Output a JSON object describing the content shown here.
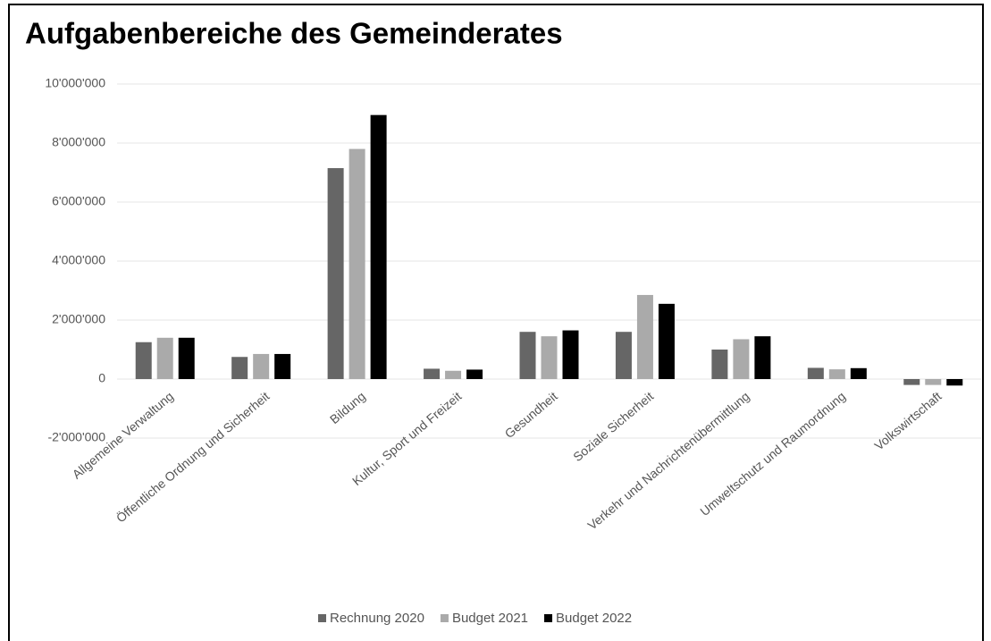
{
  "chart_data": {
    "type": "bar",
    "title": "Aufgabenbereiche des Gemeinderates",
    "categories": [
      "Allgemeine Verwaltung",
      "Öffentliche Ordnung und Sicherheit",
      "Bildung",
      "Kultur, Sport und Freizeit",
      "Gesundheit",
      "Soziale Sicherheit",
      "Verkehr und Nachrichtenübermittlung",
      "Umweltschutz und Raumordnung",
      "Volkswirtschaft"
    ],
    "series": [
      {
        "name": "Rechnung 2020",
        "color": "#666666",
        "values": [
          1250000,
          750000,
          7150000,
          350000,
          1600000,
          1600000,
          1000000,
          380000,
          -200000
        ]
      },
      {
        "name": "Budget 2021",
        "color": "#aaaaaa",
        "values": [
          1400000,
          850000,
          7800000,
          280000,
          1450000,
          2850000,
          1350000,
          330000,
          -200000
        ]
      },
      {
        "name": "Budget 2022",
        "color": "#000000",
        "values": [
          1400000,
          850000,
          8950000,
          320000,
          1650000,
          2550000,
          1450000,
          370000,
          -220000
        ]
      }
    ],
    "ylim": [
      -2000000,
      10000000
    ],
    "yticks": [
      {
        "value": -2000000,
        "label": "-2'000'000"
      },
      0,
      {
        "value": 2000000,
        "label": "2'000'000"
      },
      {
        "value": 4000000,
        "label": "4'000'000"
      },
      {
        "value": 6000000,
        "label": "6'000'000"
      },
      {
        "value": 8000000,
        "label": "8'000'000"
      },
      {
        "value": 10000000,
        "label": "10'000'000"
      }
    ],
    "grid": true,
    "legend": "bottom"
  }
}
